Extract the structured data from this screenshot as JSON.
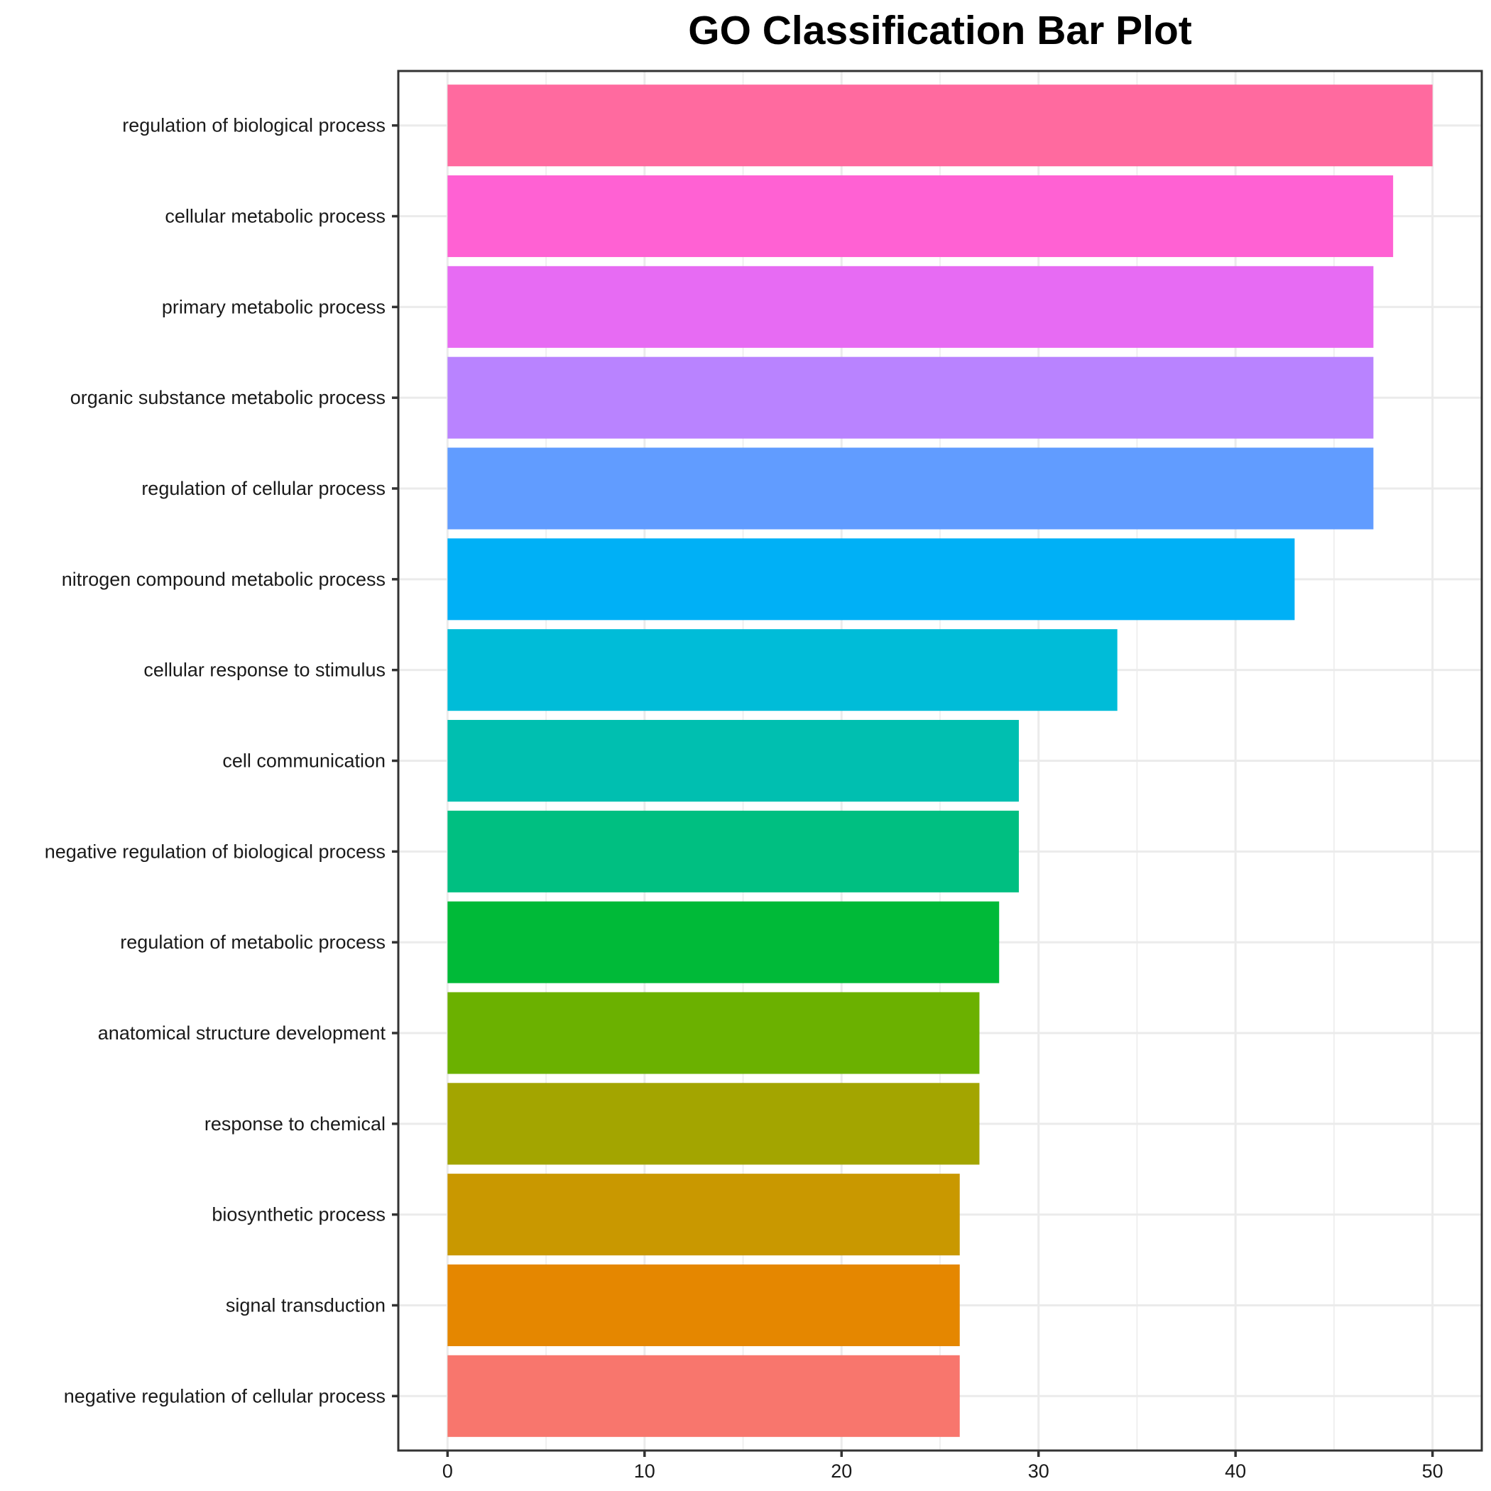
{
  "chart_data": {
    "type": "bar",
    "orientation": "horizontal",
    "title": "GO Classification Bar Plot",
    "xlabel": "",
    "ylabel": "",
    "xlim": [
      -2.5,
      52.5
    ],
    "x_ticks": [
      0,
      10,
      20,
      30,
      40,
      50
    ],
    "grid": true,
    "legend": "none",
    "categories": [
      "regulation of biological process",
      "cellular metabolic process",
      "primary metabolic process",
      "organic substance metabolic process",
      "regulation of cellular process",
      "nitrogen compound metabolic process",
      "cellular response to stimulus",
      "cell communication",
      "negative regulation of biological process",
      "regulation of metabolic process",
      "anatomical structure development",
      "response to chemical",
      "biosynthetic process",
      "signal transduction",
      "negative regulation of cellular process"
    ],
    "values": [
      50,
      48,
      47,
      47,
      47,
      43,
      34,
      29,
      29,
      28,
      27,
      27,
      26,
      26,
      26
    ],
    "colors": [
      "#FF6A9F",
      "#FF61D3",
      "#E76BF3",
      "#B983FF",
      "#619CFF",
      "#00B0F6",
      "#00BCD8",
      "#00BFB0",
      "#00BF81",
      "#00BA38",
      "#6BB100",
      "#A3A500",
      "#C99800",
      "#E58700",
      "#F8766D"
    ]
  }
}
